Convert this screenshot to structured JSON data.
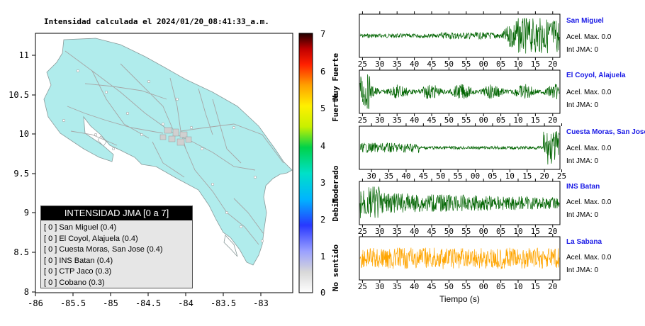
{
  "map": {
    "title": "Intensidad calculada el 2024/01/20_08:41:33_a.m.",
    "x_ticks": [
      "-86",
      "-85.5",
      "-85",
      "-84.5",
      "-84",
      "-83.5",
      "-83"
    ],
    "y_ticks": [
      "11",
      "10.5",
      "10",
      "9.5",
      "9",
      "8.5",
      "8"
    ]
  },
  "colorbar": {
    "ticks": [
      "7",
      "6",
      "5",
      "4",
      "3",
      "2",
      "1",
      "0"
    ],
    "labels": [
      "Muy Fuerte",
      "Fuerte",
      "Moderado",
      "Debil",
      "No sentido"
    ]
  },
  "legend": {
    "title": "INTENSIDAD JMA [0 a 7]",
    "items": [
      "[ 0 ]  San Miguel (0.4)",
      "[ 0 ]  El Coyol, Alajuela (0.4)",
      "[ 0 ]  Cuesta Moras, San Jose (0.4)",
      "[ 0 ]  INS Batan (0.4)",
      "[ 0 ]  CTP Jaco (0.3)",
      "[ 0 ]  Cobano (0.3)"
    ]
  },
  "stations": [
    {
      "name": "San Miguel",
      "acel": "Acel. Max. 0.0",
      "int": "Int JMA: 0",
      "ticks": [
        "25",
        "30",
        "35",
        "40",
        "45",
        "50",
        "55",
        "00",
        "05",
        "10",
        "15",
        "20"
      ]
    },
    {
      "name": "El Coyol, Alajuela",
      "acel": "Acel. Max. 0.0",
      "int": "Int JMA: 0",
      "ticks": [
        "25",
        "30",
        "35",
        "40",
        "45",
        "50",
        "55",
        "00",
        "05",
        "10",
        "15",
        "20"
      ]
    },
    {
      "name": "Cuesta Moras, San Jose",
      "acel": "Acel. Max. 0.0",
      "int": "Int JMA: 0",
      "ticks": [
        "30",
        "35",
        "40",
        "45",
        "50",
        "55",
        "00",
        "05",
        "10",
        "15",
        "20",
        "25"
      ]
    },
    {
      "name": "INS Batan",
      "acel": "Acel. Max. 0.0",
      "int": "Int JMA: 0",
      "ticks": [
        "25",
        "30",
        "35",
        "40",
        "45",
        "50",
        "55",
        "00",
        "05",
        "10",
        "15",
        "20"
      ]
    },
    {
      "name": "La Sabana",
      "acel": "Acel. Max. 0.0",
      "int": "Int JMA: 0",
      "ticks": [
        "25",
        "30",
        "35",
        "40",
        "45",
        "50",
        "55",
        "00",
        "05",
        "10",
        "15",
        "20"
      ]
    }
  ],
  "xlabel": "Tiempo (s)",
  "colors": {
    "trace": "#006400",
    "trace_alt": "#ffa500",
    "land": "#b0ecec",
    "roads": "#a0a0a0"
  },
  "chart_data": [
    {
      "type": "heatmap",
      "title": "Intensidad calculada el 2024/01/20_08:41:33_a.m.",
      "xlim": [
        -86,
        -82.6
      ],
      "ylim": [
        8,
        11.3
      ],
      "colorbar_range": [
        0,
        7
      ],
      "legend_title": "INTENSIDAD JMA [0 a 7]"
    },
    {
      "type": "line",
      "xlabel": "Tiempo (s)",
      "series": [
        {
          "name": "San Miguel"
        },
        {
          "name": "El Coyol, Alajuela"
        },
        {
          "name": "Cuesta Moras, San Jose"
        },
        {
          "name": "INS Batan"
        },
        {
          "name": "La Sabana"
        }
      ]
    }
  ]
}
